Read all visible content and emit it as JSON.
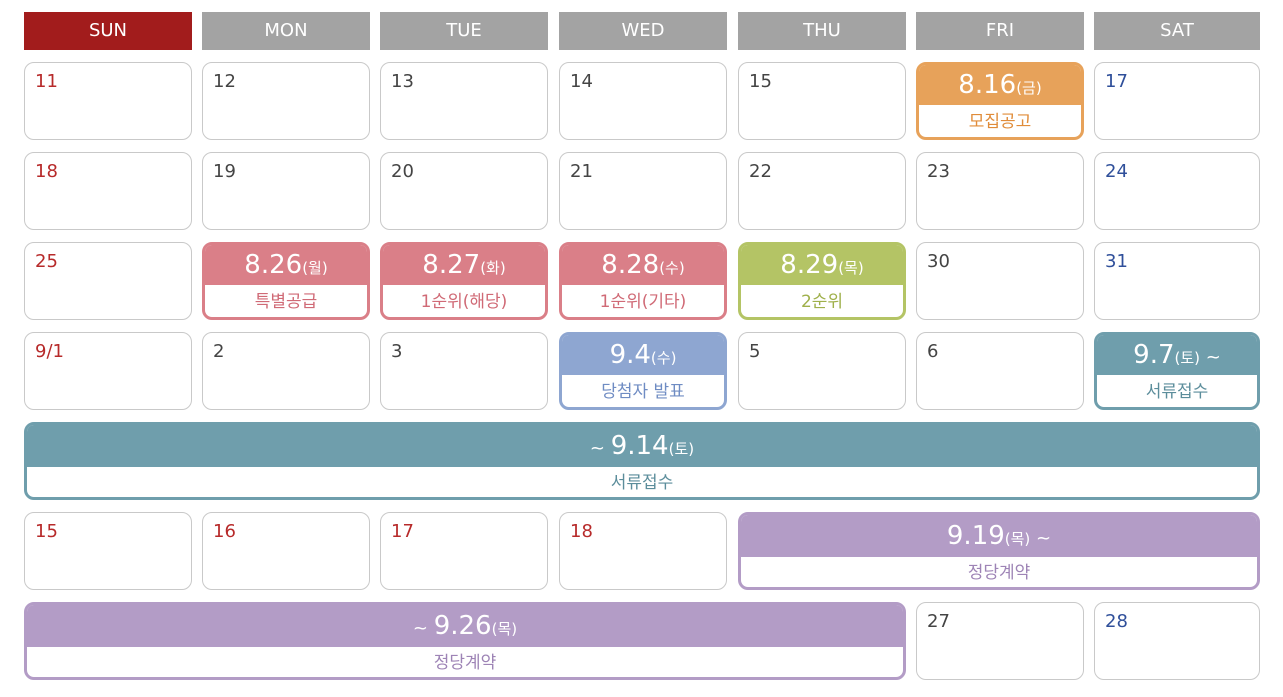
{
  "weekdays": [
    "SUN",
    "MON",
    "TUE",
    "WED",
    "THU",
    "FRI",
    "SAT"
  ],
  "colors": {
    "sunday_header": "#a21c1c",
    "weekday_header": "#a3a3a3",
    "orange": "#e7a25a",
    "pink": "#da7f88",
    "green": "#b4c465",
    "blue": "#8ea6d1",
    "teal": "#6f9eac",
    "purple": "#b39cc6"
  },
  "days": {
    "r1": [
      "11",
      "12",
      "13",
      "14",
      "15",
      "17"
    ],
    "r2": [
      "18",
      "19",
      "20",
      "21",
      "22",
      "23",
      "24"
    ],
    "r3": [
      "25",
      "30",
      "31"
    ],
    "r4": [
      "9/1",
      "2",
      "3",
      "5",
      "6"
    ],
    "r6": [
      "15",
      "16",
      "17",
      "18"
    ],
    "r7": [
      "27",
      "28"
    ]
  },
  "events": {
    "recruit_notice": {
      "date": "8.16",
      "weekday": "(금)",
      "label": "모집공고"
    },
    "special_supply": {
      "date": "8.26",
      "weekday": "(월)",
      "label": "특별공급"
    },
    "first_local": {
      "date": "8.27",
      "weekday": "(화)",
      "label": "1순위(해당)"
    },
    "first_other": {
      "date": "8.28",
      "weekday": "(수)",
      "label": "1순위(기타)"
    },
    "second_rank": {
      "date": "8.29",
      "weekday": "(목)",
      "label": "2순위"
    },
    "winner_announce": {
      "date": "9.4",
      "weekday": "(수)",
      "label": "당첨자 발표"
    },
    "docs_start": {
      "date": "9.7",
      "weekday": "(토)",
      "suffix": " ~",
      "label": "서류접수"
    },
    "docs_end": {
      "prefix": "~ ",
      "date": "9.14",
      "weekday": "(토)",
      "label": "서류접수"
    },
    "contract_start": {
      "date": "9.19",
      "weekday": "(목)",
      "suffix": " ~",
      "label": "정당계약"
    },
    "contract_end": {
      "prefix": "~ ",
      "date": "9.26",
      "weekday": "(목)",
      "label": "정당계약"
    }
  }
}
